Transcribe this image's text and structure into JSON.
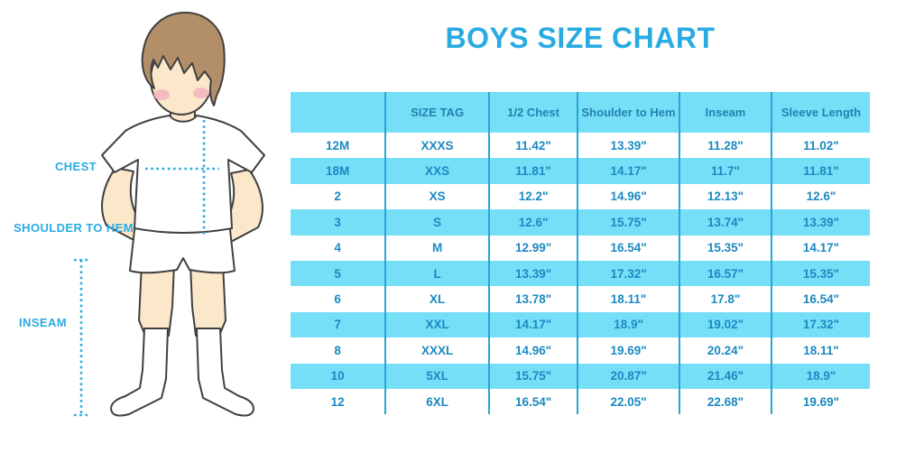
{
  "title": "BOYS SIZE CHART",
  "diagram": {
    "figure": "boy-illustration",
    "labels": {
      "chest": "CHEST",
      "shoulder_to_hem": "SHOULDER TO HEM",
      "inseam": "INSEAM"
    }
  },
  "table": {
    "columns": [
      "",
      "SIZE TAG",
      "1/2 Chest",
      "Shoulder to Hem",
      "Inseam",
      "Sleeve Length"
    ],
    "rows": [
      [
        "12M",
        "XXXS",
        "11.42\"",
        "13.39\"",
        "11.28\"",
        "11.02\""
      ],
      [
        "18M",
        "XXS",
        "11.81\"",
        "14.17\"",
        "11.7\"",
        "11.81\""
      ],
      [
        "2",
        "XS",
        "12.2\"",
        "14.96\"",
        "12.13\"",
        "12.6\""
      ],
      [
        "3",
        "S",
        "12.6\"",
        "15.75\"",
        "13.74\"",
        "13.39\""
      ],
      [
        "4",
        "M",
        "12.99\"",
        "16.54\"",
        "15.35\"",
        "14.17\""
      ],
      [
        "5",
        "L",
        "13.39\"",
        "17.32\"",
        "16.57\"",
        "15.35\""
      ],
      [
        "6",
        "XL",
        "13.78\"",
        "18.11\"",
        "17.8\"",
        "16.54\""
      ],
      [
        "7",
        "XXL",
        "14.17\"",
        "18.9\"",
        "19.02\"",
        "17.32\""
      ],
      [
        "8",
        "XXXL",
        "14.96\"",
        "19.69\"",
        "20.24\"",
        "18.11\""
      ],
      [
        "10",
        "5XL",
        "15.75\"",
        "20.87\"",
        "21.46\"",
        "18.9\""
      ],
      [
        "12",
        "6XL",
        "16.54\"",
        "22.05\"",
        "22.68\"",
        "19.69\""
      ]
    ]
  },
  "colors": {
    "title_blue": "#29ABE2",
    "header_bg": "#76DFF8",
    "row_alt_bg": "#76DFF8",
    "table_text": "#1B89C1",
    "header_text": "#2381AE",
    "divider": "#2AA4D4",
    "label_blue": "#29ABE2",
    "dotted_line_blue": "#29ABE2",
    "skin": "#FBE8CB",
    "hair_brown": "#B28F68",
    "cheek_pink": "#F3AFBE",
    "outline": "#404040"
  }
}
